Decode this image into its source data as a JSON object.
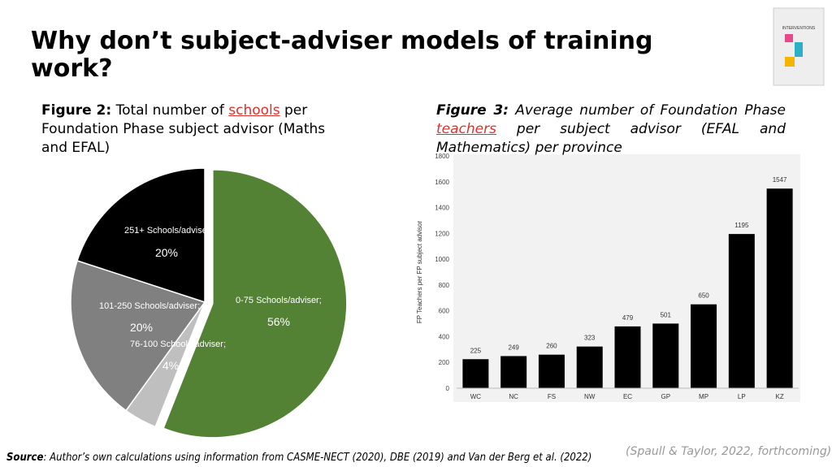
{
  "title": "Why don’t subject-adviser models of training work?",
  "source_label": "Source",
  "source": ": Author’s own calculations using information from CASME-NECT (2020), DBE (2019) and Van der Berg et al. (2022)",
  "citation": "(Spaull & Taylor, 2022, forthcoming)",
  "book_title": "INTERVENTIONS",
  "chart_data": [
    {
      "type": "pie",
      "title": [
        "Figure 2:",
        " Total number of ",
        "schools",
        " per Foundation Phase subject advisor (Maths and EFAL)"
      ],
      "categories": [
        "0-75 Schools/adviser;",
        "76-100 Schools/adviser;",
        "101-250 Schools/adviser;",
        "251+ Schools/adviser"
      ],
      "values": [
        56,
        4,
        20,
        20
      ],
      "value_labels": [
        "56%",
        "4%",
        "20%",
        "20%"
      ],
      "colors": [
        "#548235",
        "#bfbfbf",
        "#808080",
        "#000000"
      ]
    },
    {
      "type": "bar",
      "title": [
        "Figure 3:",
        " Average number of Foundation Phase ",
        "teachers",
        " per subject advisor (EFAL and Mathematics) per province"
      ],
      "ylabel": "FP Teachers per FP subject advisor",
      "categories": [
        "WC",
        "NC",
        "FS",
        "NW",
        "EC",
        "GP",
        "MP",
        "LP",
        "KZ"
      ],
      "values": [
        225,
        249,
        260,
        323,
        479,
        501,
        650,
        1195,
        1547
      ],
      "color": "#000000",
      "ylim": [
        0,
        1800
      ],
      "yticks": [
        0,
        200,
        400,
        600,
        800,
        1000,
        1200,
        1400,
        1600,
        1800
      ],
      "grid": false
    }
  ]
}
